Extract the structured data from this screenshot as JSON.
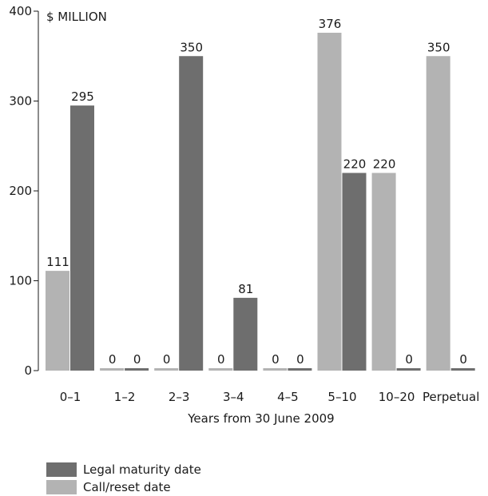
{
  "chart_data": {
    "type": "bar",
    "unit_label": "$ MILLION",
    "xlabel": "Years from 30 June 2009",
    "ylabel": "",
    "ylim": [
      0,
      400
    ],
    "yticks": [
      "0",
      "100",
      "200",
      "300",
      "400"
    ],
    "grid": false,
    "legend_position": "bottom-left",
    "categories": [
      "0–1",
      "1–2",
      "2–3",
      "3–4",
      "4–5",
      "5–10",
      "10–20",
      "Perpetual"
    ],
    "series": [
      {
        "name": "Call/reset date",
        "color": "#b3b3b3",
        "values": [
          111,
          0,
          0,
          0,
          0,
          376,
          220,
          350
        ]
      },
      {
        "name": "Legal maturity date",
        "color": "#6e6e6e",
        "values": [
          295,
          0,
          350,
          81,
          0,
          220,
          0,
          0
        ]
      }
    ]
  },
  "legend": {
    "items": [
      {
        "label": "Legal maturity date",
        "color": "#6e6e6e"
      },
      {
        "label": "Call/reset date",
        "color": "#b3b3b3"
      }
    ]
  }
}
